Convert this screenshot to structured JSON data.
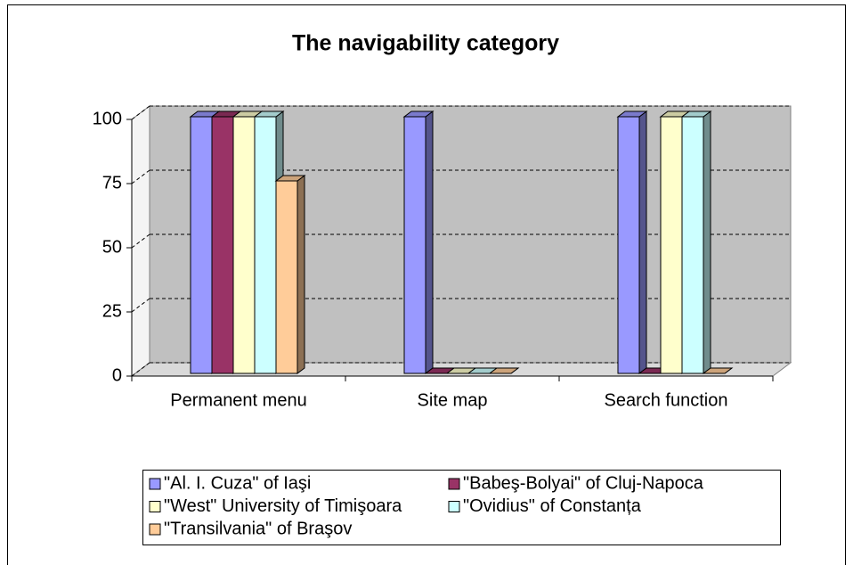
{
  "chart_data": {
    "type": "bar3d",
    "title": "The navigability category",
    "categories": [
      "Permanent menu",
      "Site map",
      "Search function"
    ],
    "series": [
      {
        "name": "\"Al. I. Cuza\" of Iaşi",
        "color": "#9999ff",
        "values": [
          100,
          100,
          100
        ]
      },
      {
        "name": "\"Babeş-Bolyai\" of Cluj-Napoca",
        "color": "#993366",
        "values": [
          100,
          0,
          0
        ]
      },
      {
        "name": "\"West\" University of Timişoara",
        "color": "#ffffcc",
        "values": [
          100,
          0,
          100
        ]
      },
      {
        "name": "\"Ovidius\" of Constanța",
        "color": "#ccffff",
        "values": [
          100,
          0,
          100
        ]
      },
      {
        "name": "\"Transilvania\" of Braşov",
        "color": "#ffcc99",
        "values": [
          75,
          0,
          0
        ]
      }
    ],
    "ylim": [
      0,
      100
    ],
    "yticks": [
      0,
      25,
      50,
      75,
      100
    ],
    "grid": true
  }
}
